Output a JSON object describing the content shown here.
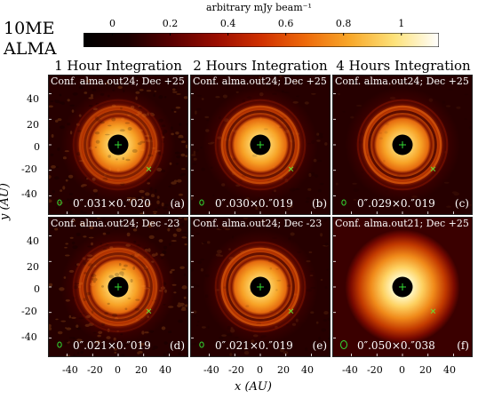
{
  "figure": {
    "label_line1": "10ME",
    "label_line2": "ALMA",
    "colorbar": {
      "label": "arbitrary mJy beam⁻¹",
      "ticks": [
        "0",
        "0.2",
        "0.4",
        "0.6",
        "0.8",
        "1"
      ],
      "tick_values": [
        0,
        0.2,
        0.4,
        0.6,
        0.8,
        1.0
      ],
      "range": [
        -0.1,
        1.13
      ],
      "colormap": "afmhot",
      "stops": [
        "#000000",
        "#1a0000",
        "#5a0000",
        "#9a0d00",
        "#d03000",
        "#ee6a0a",
        "#f8a82a",
        "#fde27a",
        "#ffffff"
      ]
    },
    "column_titles": [
      "1 Hour Integration",
      "2 Hours Integration",
      "4 Hours Integration"
    ],
    "axes": {
      "xlabel": "x (AU)",
      "ylabel": "y (AU)",
      "x_ticks": [
        "-40",
        "-20",
        "0",
        "20",
        "40"
      ],
      "y_ticks": [
        "40",
        "20",
        "0",
        "-20",
        "-40"
      ],
      "xlim": [
        -55,
        55
      ],
      "ylim": [
        -55,
        55
      ]
    },
    "panels": [
      {
        "config": "Conf. alma.out24; Dec +25",
        "beam": "0″.031×0.″020",
        "letter": "(a)",
        "noise": 0.85,
        "ring": 0.55
      },
      {
        "config": "Conf. alma.out24; Dec +25",
        "beam": "0″.030×0.″019",
        "letter": "(b)",
        "noise": 0.45,
        "ring": 0.75
      },
      {
        "config": "Conf. alma.out24; Dec +25",
        "beam": "0″.029×0.″019",
        "letter": "(c)",
        "noise": 0.25,
        "ring": 0.85
      },
      {
        "config": "Conf. alma.out24; Dec -23",
        "beam": "0″.021×0.″019",
        "letter": "(d)",
        "noise": 0.85,
        "ring": 0.6
      },
      {
        "config": "Conf. alma.out24; Dec -23",
        "beam": "0″.021×0.″019",
        "letter": "(e)",
        "noise": 0.45,
        "ring": 0.8
      },
      {
        "config": "Conf. alma.out21; Dec +25",
        "beam": "0″.050×0.″038",
        "letter": "(f)",
        "noise": 0.0,
        "ring": 0.15
      }
    ],
    "markers": {
      "star_marker": "plus-green",
      "planet_marker": "cross-green",
      "planet_position": [
        24,
        -19
      ],
      "central_mask_radius": 8
    }
  }
}
